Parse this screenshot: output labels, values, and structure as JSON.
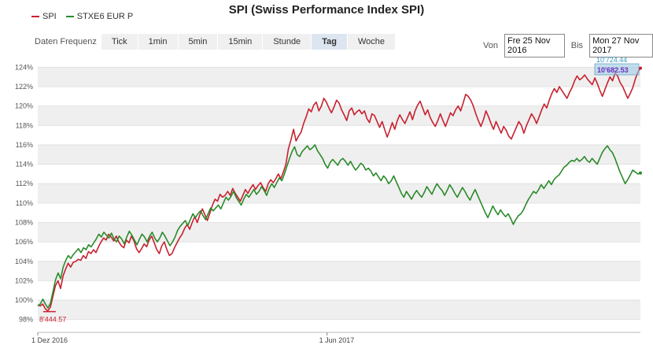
{
  "title": "SPI (Swiss Performance Index SPI)",
  "legend": [
    {
      "label": "SPI",
      "color": "#c8202f"
    },
    {
      "label": "STXE6 EUR P",
      "color": "#2a8a2a"
    }
  ],
  "toolbar": {
    "label": "Daten Frequenz",
    "buttons": [
      "Tick",
      "1min",
      "5min",
      "15min",
      "Stunde",
      "Tag",
      "Woche"
    ],
    "active": "Tag"
  },
  "daterange": {
    "from_label": "Von",
    "from_value": "Fre 25 Nov 2016",
    "to_label": "Bis",
    "to_value": "Mon 27 Nov 2017"
  },
  "chart_data": {
    "type": "line",
    "x_labels": [
      "1 Dez 2016",
      "1 Jun 2017"
    ],
    "y_ticks": [
      "98%",
      "100%",
      "102%",
      "104%",
      "106%",
      "108%",
      "110%",
      "112%",
      "114%",
      "116%",
      "118%",
      "120%",
      "122%",
      "124%"
    ],
    "ylim": [
      97,
      125
    ],
    "grid": true,
    "legend_position": "top-left",
    "annotations": {
      "min_label": "8'444.57",
      "last_value_spi": "10'682.53",
      "last_value_stxe": "10'724.44"
    },
    "series": [
      {
        "name": "SPI",
        "color": "#c8202f",
        "values": [
          99.5,
          99.4,
          99.6,
          99.1,
          98.9,
          99.3,
          100.4,
          101.5,
          102.0,
          101.2,
          102.5,
          103.2,
          103.8,
          103.4,
          103.9,
          104.0,
          104.2,
          104.1,
          104.6,
          104.3,
          105.0,
          104.8,
          105.2,
          104.9,
          105.5,
          106.0,
          106.4,
          106.2,
          106.8,
          106.5,
          106.1,
          106.6,
          106.0,
          105.6,
          105.4,
          106.2,
          105.9,
          106.6,
          106.1,
          105.3,
          104.9,
          105.3,
          105.8,
          105.5,
          106.2,
          106.6,
          105.9,
          105.2,
          104.8,
          105.6,
          106.0,
          105.2,
          104.6,
          104.8,
          105.4,
          105.9,
          106.4,
          106.8,
          107.4,
          107.8,
          107.3,
          108.0,
          108.6,
          108.0,
          108.8,
          109.4,
          108.8,
          108.2,
          109.0,
          109.8,
          110.4,
          110.2,
          110.9,
          110.6,
          110.8,
          111.2,
          110.8,
          111.5,
          111.0,
          110.6,
          110.2,
          110.8,
          111.4,
          111.0,
          111.5,
          111.9,
          111.4,
          111.8,
          112.1,
          111.6,
          111.2,
          112.0,
          112.4,
          112.1,
          112.5,
          113.0,
          112.5,
          113.2,
          114.0,
          115.6,
          116.5,
          117.6,
          116.4,
          116.9,
          117.3,
          118.2,
          118.9,
          119.7,
          119.4,
          120.1,
          120.4,
          119.5,
          120.0,
          120.8,
          120.4,
          119.8,
          119.3,
          119.9,
          120.6,
          120.3,
          119.6,
          119.1,
          118.5,
          119.5,
          119.8,
          119.1,
          119.4,
          119.6,
          119.2,
          119.5,
          118.7,
          118.3,
          119.2,
          119.0,
          118.4,
          117.8,
          118.4,
          117.6,
          116.8,
          117.5,
          118.3,
          117.6,
          118.5,
          119.1,
          118.6,
          118.2,
          118.8,
          119.4,
          118.6,
          119.5,
          120.1,
          120.5,
          119.8,
          119.1,
          119.6,
          118.8,
          118.3,
          117.9,
          118.5,
          119.2,
          118.5,
          117.9,
          118.6,
          119.3,
          119.0,
          119.6,
          120.0,
          119.5,
          120.3,
          121.2,
          121.0,
          120.6,
          120.0,
          119.2,
          118.5,
          117.9,
          118.6,
          119.5,
          118.9,
          118.2,
          117.6,
          118.4,
          117.8,
          117.2,
          117.9,
          117.5,
          116.9,
          116.6,
          117.2,
          117.8,
          118.4,
          118.0,
          117.2,
          118.0,
          118.6,
          119.2,
          118.8,
          118.2,
          118.9,
          119.6,
          120.2,
          119.8,
          120.6,
          121.3,
          121.8,
          121.4,
          122.0,
          121.6,
          121.2,
          120.8,
          121.4,
          121.9,
          122.6,
          123.1,
          122.7,
          122.9,
          123.2,
          122.8,
          122.5,
          122.2,
          122.9,
          122.3,
          121.6,
          121.0,
          121.7,
          122.4,
          123.0,
          122.6,
          123.4,
          123.1,
          122.4,
          122.0,
          121.4,
          120.8,
          121.3,
          121.9,
          122.8,
          123.5,
          123.9
        ]
      },
      {
        "name": "STXE6 EUR P",
        "color": "#2a8a2a",
        "values": [
          99.4,
          99.6,
          100.1,
          99.6,
          99.2,
          99.7,
          100.9,
          102.1,
          102.8,
          102.2,
          103.4,
          104.1,
          104.6,
          104.3,
          104.7,
          105.0,
          105.3,
          104.9,
          105.4,
          105.2,
          105.7,
          105.5,
          105.9,
          106.3,
          106.8,
          106.5,
          107.0,
          106.7,
          106.4,
          106.9,
          106.3,
          106.0,
          106.6,
          106.3,
          105.8,
          106.5,
          107.1,
          106.7,
          106.2,
          105.7,
          106.3,
          106.8,
          106.5,
          106.0,
          106.6,
          107.0,
          106.4,
          106.0,
          106.4,
          107.0,
          106.6,
          106.1,
          105.6,
          106.0,
          106.5,
          107.2,
          107.6,
          107.9,
          108.2,
          107.7,
          108.3,
          108.9,
          108.5,
          108.9,
          109.2,
          108.7,
          108.3,
          108.9,
          109.5,
          109.2,
          109.5,
          109.8,
          109.4,
          110.0,
          110.6,
          110.3,
          110.7,
          111.2,
          110.6,
          110.2,
          109.8,
          110.4,
          110.9,
          110.6,
          111.0,
          111.4,
          110.9,
          111.2,
          111.7,
          111.3,
          110.8,
          111.5,
          112.0,
          111.6,
          112.1,
          112.6,
          112.3,
          113.0,
          113.8,
          114.6,
          115.3,
          115.8,
          115.0,
          114.8,
          115.3,
          115.6,
          115.9,
          115.5,
          115.7,
          116.0,
          115.4,
          115.0,
          114.6,
          114.0,
          113.6,
          114.2,
          114.5,
          114.2,
          113.9,
          114.4,
          114.6,
          114.3,
          113.9,
          114.3,
          113.8,
          113.4,
          113.7,
          114.1,
          113.9,
          113.4,
          113.6,
          113.3,
          112.8,
          113.1,
          112.7,
          112.3,
          112.8,
          112.5,
          112.0,
          112.3,
          112.8,
          112.2,
          111.6,
          111.0,
          110.6,
          111.2,
          110.8,
          110.4,
          110.9,
          111.3,
          110.9,
          110.6,
          111.1,
          111.7,
          111.3,
          110.9,
          111.5,
          112.0,
          111.6,
          111.3,
          110.8,
          111.3,
          111.9,
          111.5,
          111.0,
          110.6,
          111.1,
          111.6,
          111.2,
          110.7,
          110.3,
          110.9,
          111.4,
          110.8,
          110.2,
          109.6,
          109.0,
          108.5,
          109.1,
          109.7,
          109.2,
          108.8,
          109.3,
          108.9,
          108.6,
          108.9,
          108.4,
          107.8,
          108.3,
          108.7,
          108.9,
          109.3,
          109.9,
          110.4,
          110.8,
          111.2,
          111.0,
          111.4,
          111.9,
          111.5,
          111.9,
          112.3,
          111.9,
          112.4,
          112.7,
          112.9,
          113.3,
          113.7,
          113.9,
          114.2,
          114.4,
          114.3,
          114.6,
          114.3,
          114.5,
          114.8,
          114.4,
          114.2,
          114.6,
          114.3,
          114.0,
          114.6,
          115.2,
          115.6,
          115.9,
          115.5,
          115.2,
          114.6,
          113.9,
          113.2,
          112.6,
          112.0,
          112.4,
          112.9,
          113.4,
          113.2,
          113.0,
          113.1
        ]
      }
    ]
  }
}
